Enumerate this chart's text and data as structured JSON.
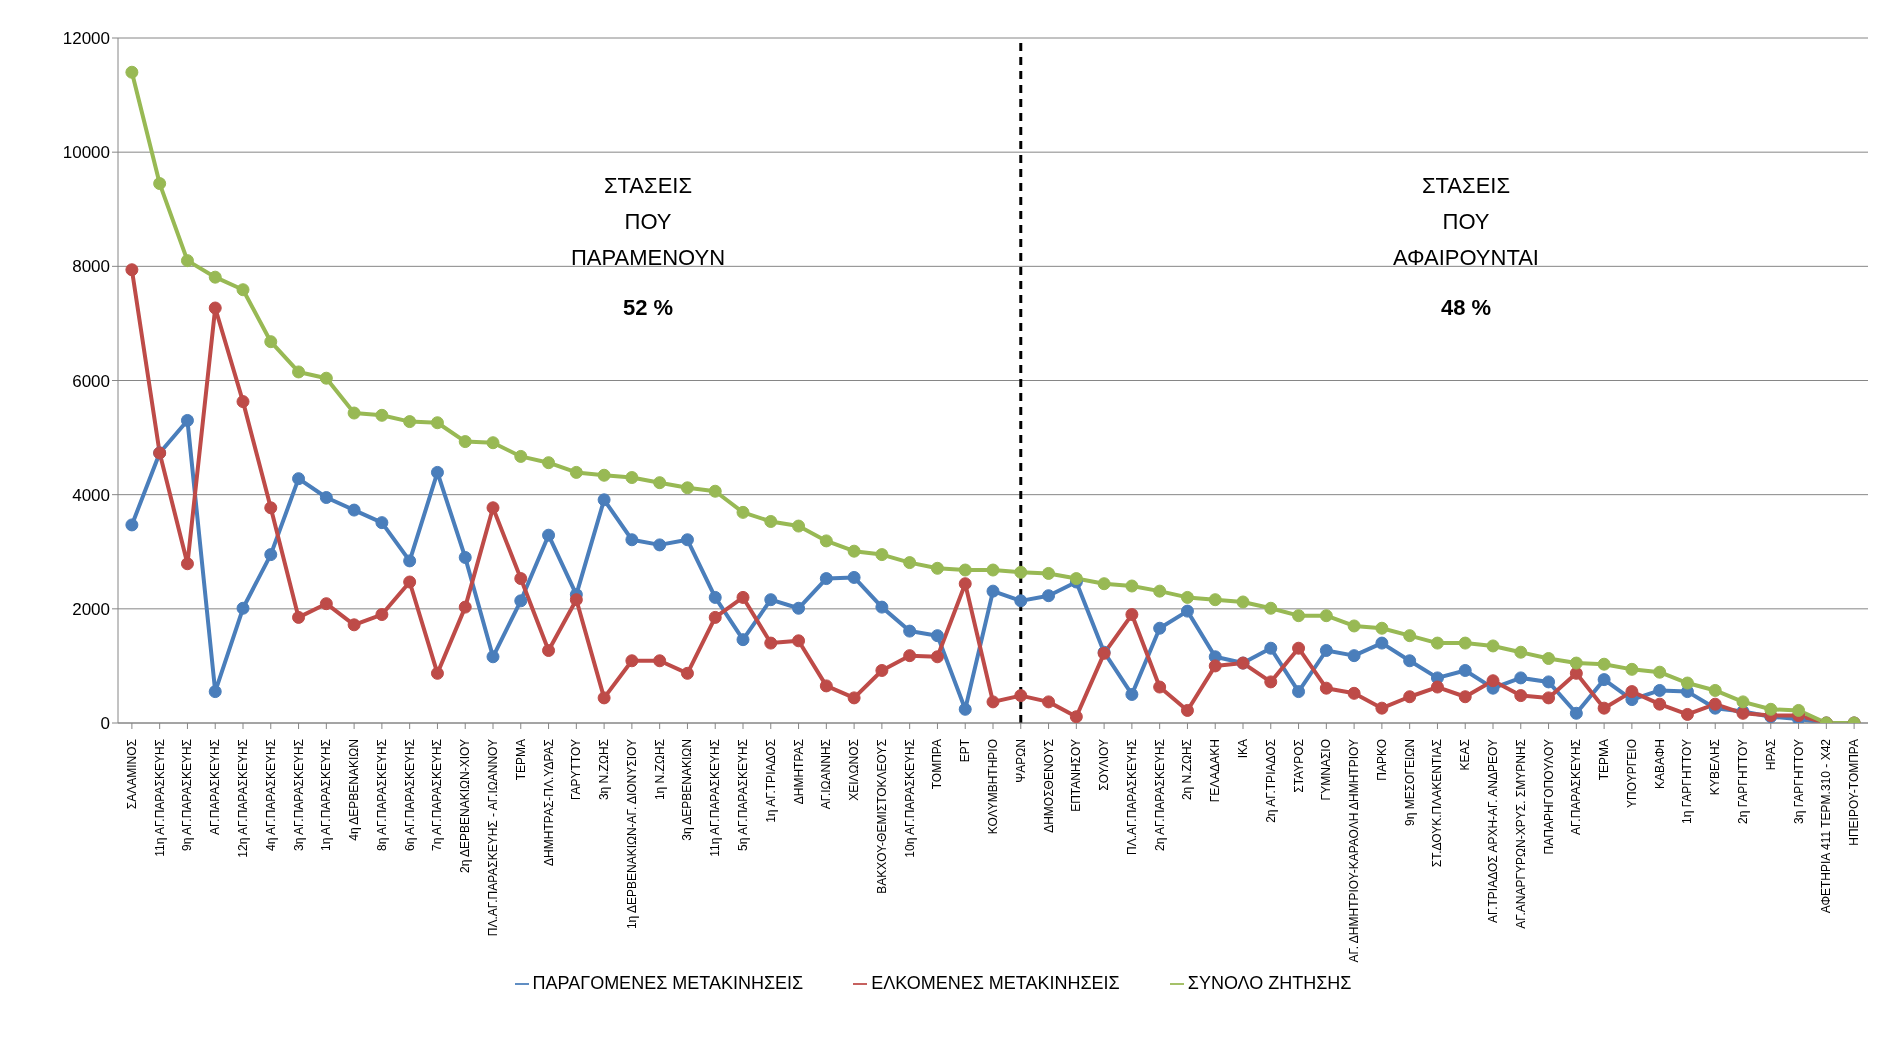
{
  "chart_data": {
    "type": "line",
    "categories": [
      "ΣΑΛΑΜΙΝΟΣ",
      "11η ΑΓ.ΠΑΡΑΣΚΕΥΗΣ",
      "9η ΑΓ.ΠΑΡΑΣΚΕΥΗΣ",
      "ΑΓ.ΠΑΡΑΣΚΕΥΗΣ",
      "12η ΑΓ.ΠΑΡΑΣΚΕΥΗΣ",
      "4η ΑΓ.ΠΑΡΑΣΚΕΥΗΣ",
      "3η ΑΓ.ΠΑΡΑΣΚΕΥΗΣ",
      "1η ΑΓ.ΠΑΡΑΣΚΕΥΗΣ",
      "4η ΔΕΡΒΕΝΑΚΙΩΝ",
      "8η ΑΓ.ΠΑΡΑΣΚΕΥΗΣ",
      "6η ΑΓ.ΠΑΡΑΣΚΕΥΗΣ",
      "7η ΑΓ.ΠΑΡΑΣΚΕΥΗΣ",
      "2η ΔΕΡΒΕΝΑΚΙΩΝ-ΧΙΟΥ",
      "ΠΛ.ΑΓ.ΠΑΡΑΣΚΕΥΗΣ - ΑΓ.ΙΩΑΝΝΟΥ",
      "ΤΕΡΜΑ",
      "ΔΗΜΗΤΡΑΣ-ΠΛ.ΥΔΡΑΣ",
      "ΓΑΡΥΤΤΟΥ",
      "3η Ν.ΖΩΗΣ",
      "1η ΔΕΡΒΕΝΑΚΙΩΝ-ΑΓ. ΔΙΟΝΥΣΙΟΥ",
      "1η Ν.ΖΩΗΣ",
      "3η ΔΕΡΒΕΝΑΚΙΩΝ",
      "11η ΑΓ.ΠΑΡΑΣΚΕΥΗΣ",
      "5η ΑΓ.ΠΑΡΑΣΚΕΥΗΣ",
      "1η ΑΓ.ΤΡΙΑΔΟΣ",
      "ΔΗΜΗΤΡΑΣ",
      "ΑΓ.ΙΩΑΝΝΗΣ",
      "ΧΕΙΛΩΝΟΣ",
      "ΒΑΚΧΟΥ-ΘΕΜΙΣΤΟΚΛΕΟΥΣ",
      "10η ΑΓ.ΠΑΡΑΣΚΕΥΗΣ",
      "ΤΟΜΠΡΑ",
      "ΕΡΤ",
      "ΚΟΛΥΜΒΗΤΗΡΙΟ",
      "ΨΑΡΩΝ",
      "ΔΗΜΟΣΘΕΝΟΥΣ",
      "ΕΠΤΑΝΗΣΟΥ",
      "ΣΟΥΛΙΟΥ",
      "ΠΛ.ΑΓ.ΠΑΡΑΣΚΕΥΗΣ",
      "2η ΑΓ.ΠΑΡΑΣΚΕΥΗΣ",
      "2η Ν.ΖΩΗΣ",
      "ΓΕΛΑΔΑΚΗ",
      "ΙΚΑ",
      "2η ΑΓ.ΤΡΙΑΔΟΣ",
      "ΣΤΑΥΡΟΣ",
      "ΓΥΜΝΑΣΙΟ",
      "ΑΓ. ΔΗΜΗΤΡΙΟΥ-ΚΑΡΑΟΛΗ ΔΗΜΗΤΡΙΟΥ",
      "ΠΑΡΚΟ",
      "9η ΜΕΣΟΓΕΙΩΝ",
      "ΣΤ.ΔΟΥΚ.ΠΛΑΚΕΝΤΙΑΣ",
      "ΚΕΑΣ",
      "ΑΓ.ΤΡΙΑΔΟΣ ΑΡΧΗ-ΑΓ. ΑΝΔΡΕΟΥ",
      "ΑΓ.ΑΝΑΡΓΥΡΩΝ-ΧΡΥΣ. ΣΜΥΡΝΗΣ",
      "ΠΑΠΑΡΗΓΟΠΟΥΛΟΥ",
      "ΑΓ.ΠΑΡΑΣΚΕΥΗΣ",
      "ΤΕΡΜΑ",
      "ΥΠΟΥΡΓΕΙΟ",
      "ΚΑΒΑΦΗ",
      "1η ΓΑΡΓΗΤΤΟΥ",
      "ΚΥΒΕΛΗΣ",
      "2η ΓΑΡΓΗΤΤΟΥ",
      "ΗΡΑΣ",
      "3η ΓΑΡΓΗΤΤΟΥ",
      "ΑΦΕΤΗΡΙΑ 411 ΤΕΡΜ.310 - Χ42",
      "ΗΠΕΙΡΟΥ-ΤΟΜΠΡΑ"
    ],
    "series": [
      {
        "name": "ΠΑΡΑΓΟΜΕΝΕΣ ΜΕΤΑΚΙΝΗΣΕΙΣ",
        "color": "#4a7ebb",
        "values": [
          3470,
          4730,
          5300,
          550,
          2010,
          2950,
          4280,
          3950,
          3730,
          3510,
          2840,
          4390,
          2900,
          1160,
          2140,
          3290,
          2250,
          3910,
          3210,
          3120,
          3210,
          2200,
          1460,
          2160,
          2010,
          2530,
          2550,
          2030,
          1610,
          1530,
          240,
          2310,
          2140,
          2230,
          2470,
          1240,
          500,
          1660,
          1960,
          1160,
          1050,
          1310,
          550,
          1270,
          1180,
          1400,
          1090,
          790,
          920,
          610,
          790,
          720,
          170,
          760,
          410,
          570,
          550,
          260,
          200,
          110,
          70,
          0,
          0
        ]
      },
      {
        "name": "ΕΛΚΟΜΕΝΕΣ ΜΕΤΑΚΙΝΗΣΕΙΣ",
        "color": "#be4b48",
        "values": [
          7940,
          4730,
          2790,
          7270,
          5630,
          3770,
          1850,
          2090,
          1720,
          1900,
          2470,
          870,
          2030,
          3770,
          2530,
          1270,
          2160,
          440,
          1090,
          1090,
          870,
          1850,
          2200,
          1400,
          1440,
          650,
          440,
          920,
          1180,
          1160,
          2440,
          370,
          480,
          370,
          110,
          1220,
          1900,
          630,
          220,
          1000,
          1050,
          720,
          1310,
          610,
          520,
          260,
          460,
          630,
          460,
          740,
          480,
          440,
          870,
          260,
          550,
          330,
          150,
          330,
          170,
          130,
          130,
          0,
          0
        ]
      },
      {
        "name": "ΣΥΝΟΛΟ ΖΗΤΗΣΗΣ",
        "color": "#98b954",
        "values": [
          11400,
          9450,
          8100,
          7810,
          7590,
          6680,
          6150,
          6040,
          5430,
          5390,
          5280,
          5260,
          4930,
          4910,
          4670,
          4560,
          4390,
          4340,
          4300,
          4210,
          4120,
          4060,
          3690,
          3530,
          3450,
          3190,
          3010,
          2950,
          2810,
          2710,
          2680,
          2680,
          2640,
          2620,
          2530,
          2440,
          2400,
          2310,
          2200,
          2160,
          2120,
          2010,
          1880,
          1880,
          1700,
          1660,
          1530,
          1400,
          1400,
          1350,
          1240,
          1130,
          1050,
          1030,
          940,
          890,
          700,
          570,
          370,
          240,
          220,
          0,
          0
        ]
      }
    ],
    "ylim": [
      0,
      12000
    ],
    "yticks": [
      0,
      2000,
      4000,
      6000,
      8000,
      10000,
      12000
    ],
    "grid": "y",
    "legend": "bottom",
    "marker": "circle",
    "line_style": "solid",
    "ref_lines": [
      {
        "axis": "x",
        "value": "ΨΑΡΩΝ",
        "color": "#000000",
        "line_style": "dashed"
      }
    ],
    "annotations": [
      "ΣΤΑΣΕΙΣ\nΠΟΥ\nΠΑΡΑΜΕΝΟΥΝ",
      "52 %",
      "ΣΤΑΣΕΙΣ\nΠΟΥ\nΑΦΑΙΡΟΥΝΤΑΙ",
      "48 %"
    ]
  }
}
